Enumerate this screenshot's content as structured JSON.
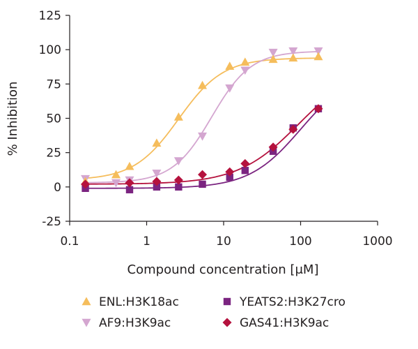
{
  "chart_data": {
    "type": "scatter",
    "xlabel": "Compound concentration [μM]",
    "ylabel": "% Inhibition",
    "xscale": "log",
    "xlim": [
      0.1,
      1000
    ],
    "ylim": [
      -25,
      125
    ],
    "xticks": [
      0.1,
      1,
      10,
      100,
      1000
    ],
    "xtick_labels": [
      "0.1",
      "1",
      "10",
      "100",
      "1000"
    ],
    "yticks": [
      -25,
      0,
      25,
      50,
      75,
      100,
      125
    ],
    "ytick_labels": [
      "-25",
      "0",
      "25",
      "50",
      "75",
      "100",
      "125"
    ],
    "grid": false,
    "legend_position": "bottom",
    "series": [
      {
        "name": "ENL:H3K18ac",
        "color": "#f5bd5c",
        "marker": "triangle-up",
        "x": [
          0.16,
          0.4,
          0.6,
          1.35,
          2.6,
          5.3,
          12,
          19,
          44,
          80,
          170
        ],
        "y": [
          4,
          9,
          15,
          32,
          51,
          74,
          88,
          91,
          93,
          94,
          95
        ],
        "fit": {
          "bottom": 5,
          "top": 94,
          "ec50": 2.6,
          "hill": 1.5
        }
      },
      {
        "name": "AF9:H3K9ac",
        "color": "#d4a6d0",
        "marker": "triangle-down",
        "x": [
          0.16,
          0.4,
          0.6,
          1.35,
          2.6,
          5.3,
          12,
          19,
          44,
          80,
          170
        ],
        "y": [
          6,
          3,
          5,
          10,
          19,
          37,
          72,
          85,
          98,
          99,
          99
        ],
        "fit": {
          "bottom": 3,
          "top": 99,
          "ec50": 7,
          "hill": 1.7
        }
      },
      {
        "name": "YEATS2:H3K27cro",
        "color": "#7b2480",
        "marker": "square",
        "x": [
          0.16,
          0.6,
          1.35,
          2.6,
          5.3,
          12,
          19,
          44,
          80,
          170
        ],
        "y": [
          -1,
          -2,
          0,
          0,
          2,
          7,
          12,
          26,
          43,
          57
        ],
        "fit": {
          "bottom": -1,
          "top": 85,
          "ec50": 100,
          "hill": 1.3
        }
      },
      {
        "name": "GAS41:H3K9ac",
        "color": "#b5123e",
        "marker": "diamond",
        "x": [
          0.16,
          0.6,
          1.35,
          2.6,
          5.3,
          12,
          19,
          44,
          80,
          170
        ],
        "y": [
          2,
          3,
          4,
          5,
          9,
          11,
          17,
          29,
          42,
          57
        ],
        "fit": {
          "bottom": 2,
          "top": 90,
          "ec50": 95,
          "hill": 1.1
        }
      }
    ]
  }
}
